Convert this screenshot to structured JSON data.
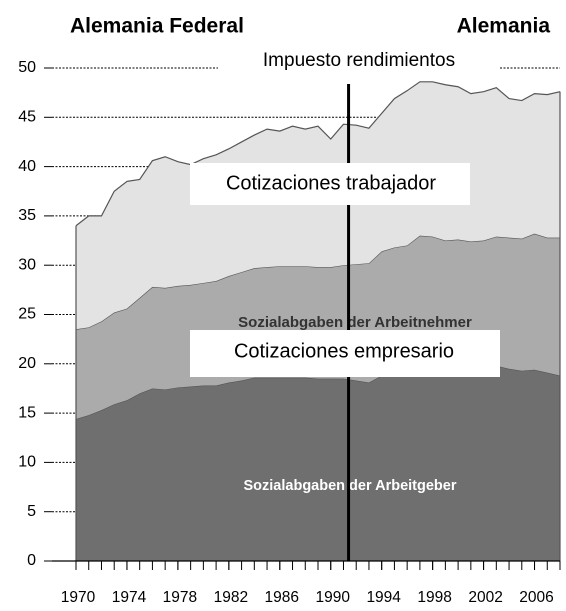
{
  "chart_data": {
    "type": "stacked_area",
    "headings": [
      "Alemania Federal",
      "Alemania"
    ],
    "annotations": [
      "Impuesto rendimientos",
      "Cotizaciones trabajador",
      "Cotizaciones empresario"
    ],
    "x": [
      1970,
      1971,
      1972,
      1973,
      1974,
      1975,
      1976,
      1977,
      1978,
      1979,
      1980,
      1981,
      1982,
      1983,
      1984,
      1985,
      1986,
      1987,
      1988,
      1989,
      1990,
      1991,
      1992,
      1993,
      1994,
      1995,
      1996,
      1997,
      1998,
      1999,
      2000,
      2001,
      2002,
      2003,
      2004,
      2005,
      2006,
      2007,
      2008
    ],
    "series": [
      {
        "name": "Sozialabgaben der Arbeitgeber",
        "color": "#6f6f6f",
        "values": [
          14.4,
          14.8,
          15.3,
          15.9,
          16.3,
          17.0,
          17.5,
          17.4,
          17.6,
          17.7,
          17.8,
          17.8,
          18.1,
          18.3,
          18.6,
          18.6,
          18.6,
          18.6,
          18.6,
          18.5,
          18.5,
          18.5,
          18.3,
          18.1,
          18.8,
          19.2,
          19.4,
          19.5,
          19.6,
          19.6,
          19.7,
          19.7,
          19.7,
          19.8,
          19.5,
          19.3,
          19.4,
          19.1,
          18.8
        ]
      },
      {
        "name": "Sozialabgaben der Arbeitnehmer",
        "color": "#ababab",
        "values": [
          9.1,
          8.9,
          9.0,
          9.3,
          9.3,
          9.7,
          10.3,
          10.3,
          10.3,
          10.3,
          10.4,
          10.6,
          10.8,
          11.0,
          11.1,
          11.2,
          11.3,
          11.3,
          11.3,
          11.3,
          11.3,
          11.5,
          11.8,
          12.1,
          12.6,
          12.6,
          12.6,
          13.5,
          13.3,
          12.9,
          12.9,
          12.7,
          12.8,
          13.1,
          13.3,
          13.4,
          13.8,
          13.7,
          14.0
        ]
      },
      {
        "color": "#e3e3e3",
        "values": [
          10.5,
          11.3,
          10.7,
          12.3,
          12.9,
          12.0,
          12.8,
          13.3,
          12.6,
          12.2,
          12.6,
          12.8,
          12.9,
          13.2,
          13.5,
          14.0,
          13.7,
          14.2,
          13.9,
          14.3,
          13.0,
          14.3,
          14.1,
          13.7,
          14.0,
          15.1,
          15.7,
          15.6,
          15.7,
          15.8,
          15.5,
          15.0,
          15.1,
          15.1,
          14.1,
          14.0,
          14.2,
          14.5,
          14.8
        ]
      }
    ],
    "vline": 1991.4,
    "xlim": [
      1970,
      2008
    ],
    "xticks": [
      1970,
      1974,
      1978,
      1982,
      1986,
      1990,
      1994,
      1998,
      2002,
      2006
    ],
    "ylim": [
      0,
      50
    ],
    "yticks": [
      0,
      5,
      10,
      15,
      20,
      25,
      30,
      35,
      40,
      45,
      50
    ],
    "grid": true
  }
}
